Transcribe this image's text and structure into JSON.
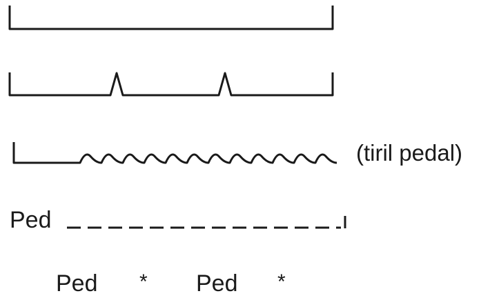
{
  "notations": {
    "trill_label": "(tiril pedal)",
    "dashed_ped_label": "Ped",
    "ped_marks": [
      {
        "ped": "Ped",
        "release": "*"
      },
      {
        "ped": "Ped",
        "release": "*"
      }
    ]
  }
}
